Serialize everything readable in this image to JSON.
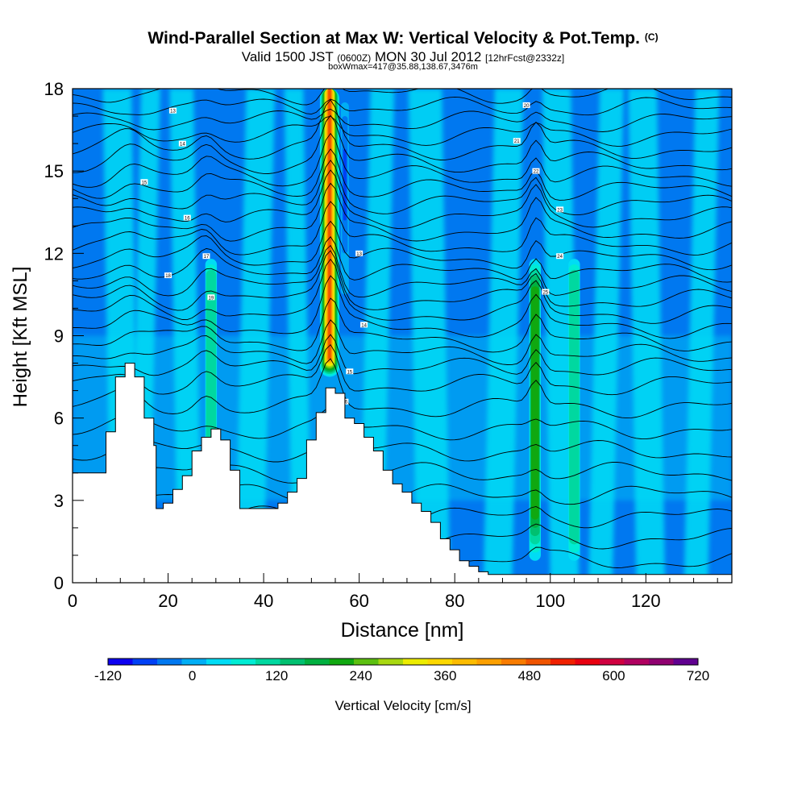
{
  "header": {
    "title": "Wind-Parallel Section at Max W: Vertical Velocity & Pot.Temp.",
    "title_mark": "(C)",
    "subtitle_valid": "Valid 1500 JST",
    "subtitle_utc": "(0600Z)",
    "subtitle_date": "MON 30 Jul 2012",
    "subtitle_fcst": "[12hrFcst@2332z]",
    "note": "boxWmax=417@35.88,138.67,3476m"
  },
  "chart_data": {
    "type": "heatmap",
    "xlabel": "Distance [nm]",
    "ylabel": "Height [Kft MSL]",
    "xlim": [
      0,
      138
    ],
    "ylim": [
      0,
      18
    ],
    "x_ticks": [
      "0",
      "20",
      "40",
      "60",
      "80",
      "100",
      "120"
    ],
    "x_tick_values": [
      0,
      20,
      40,
      60,
      80,
      100,
      120
    ],
    "y_ticks": [
      "0",
      "3",
      "6",
      "9",
      "12",
      "15",
      "18"
    ],
    "y_tick_values": [
      0,
      3,
      6,
      9,
      12,
      15,
      18
    ],
    "colorbar": {
      "label": "Vertical Velocity [cm/s]",
      "tick_labels": [
        "-120",
        "0",
        "120",
        "240",
        "360",
        "480",
        "600",
        "720"
      ],
      "tick_values": [
        -120,
        0,
        120,
        240,
        360,
        480,
        600,
        720
      ],
      "interval": 30,
      "colors": [
        "#0d00f0",
        "#0040f5",
        "#0078f0",
        "#00aef5",
        "#00dcf5",
        "#00ecd4",
        "#00d8a0",
        "#00c070",
        "#00b040",
        "#10a810",
        "#5cc010",
        "#a8d810",
        "#ecec00",
        "#fcd800",
        "#fcbc00",
        "#fca000",
        "#f87c00",
        "#f05400",
        "#f02000",
        "#e80010",
        "#d00040",
        "#b00060",
        "#900070",
        "#600090"
      ]
    },
    "terrain_profile": {
      "x_nm": [
        0,
        5,
        7,
        9,
        11,
        13,
        15,
        17,
        17.5,
        19,
        21,
        23,
        25,
        27,
        29,
        31,
        33,
        35,
        37,
        39,
        41,
        43,
        45,
        47,
        49,
        51,
        53,
        55,
        57,
        59,
        61,
        63,
        65,
        67,
        69,
        71,
        73,
        75,
        77,
        79,
        81,
        83,
        85,
        87,
        138
      ],
      "kft": [
        4.0,
        4.0,
        5.5,
        7.5,
        8.0,
        7.5,
        6.0,
        5.0,
        2.7,
        2.9,
        3.4,
        3.9,
        4.8,
        5.3,
        5.6,
        5.2,
        4.1,
        2.7,
        2.7,
        2.7,
        2.7,
        2.9,
        3.3,
        3.8,
        5.2,
        6.2,
        7.1,
        6.9,
        6.0,
        5.8,
        5.3,
        4.8,
        4.1,
        3.6,
        3.3,
        2.9,
        2.6,
        2.2,
        1.6,
        1.2,
        0.8,
        0.6,
        0.4,
        0.3,
        0.3
      ]
    },
    "updrafts": [
      {
        "x_nm": 53.8,
        "peak_cm_s": 417,
        "description": "max W column"
      },
      {
        "x_nm": 96.8,
        "peak_cm_s": 160
      },
      {
        "x_nm": 105,
        "peak_cm_s": 80
      },
      {
        "x_nm": 29,
        "peak_cm_s": 60
      }
    ],
    "downdrafts": [
      {
        "x_nm": 57,
        "min_cm_s": -120
      }
    ],
    "isentrope_heights_kft": [
      0.8,
      1.6,
      2.4,
      3.2,
      4.0,
      4.8,
      5.6,
      6.4,
      7.2,
      7.8,
      8.3,
      8.8,
      9.3,
      9.8,
      10.3,
      10.8,
      11.3,
      11.8,
      12.3,
      12.8,
      13.3,
      13.8,
      14.3,
      14.8,
      15.3,
      15.8,
      16.3,
      16.8,
      17.3,
      17.8
    ],
    "isentrope_labels": [
      "13",
      "14",
      "15",
      "16",
      "17",
      "18",
      "19",
      "20",
      "21",
      "22",
      "23",
      "24",
      "25"
    ]
  }
}
